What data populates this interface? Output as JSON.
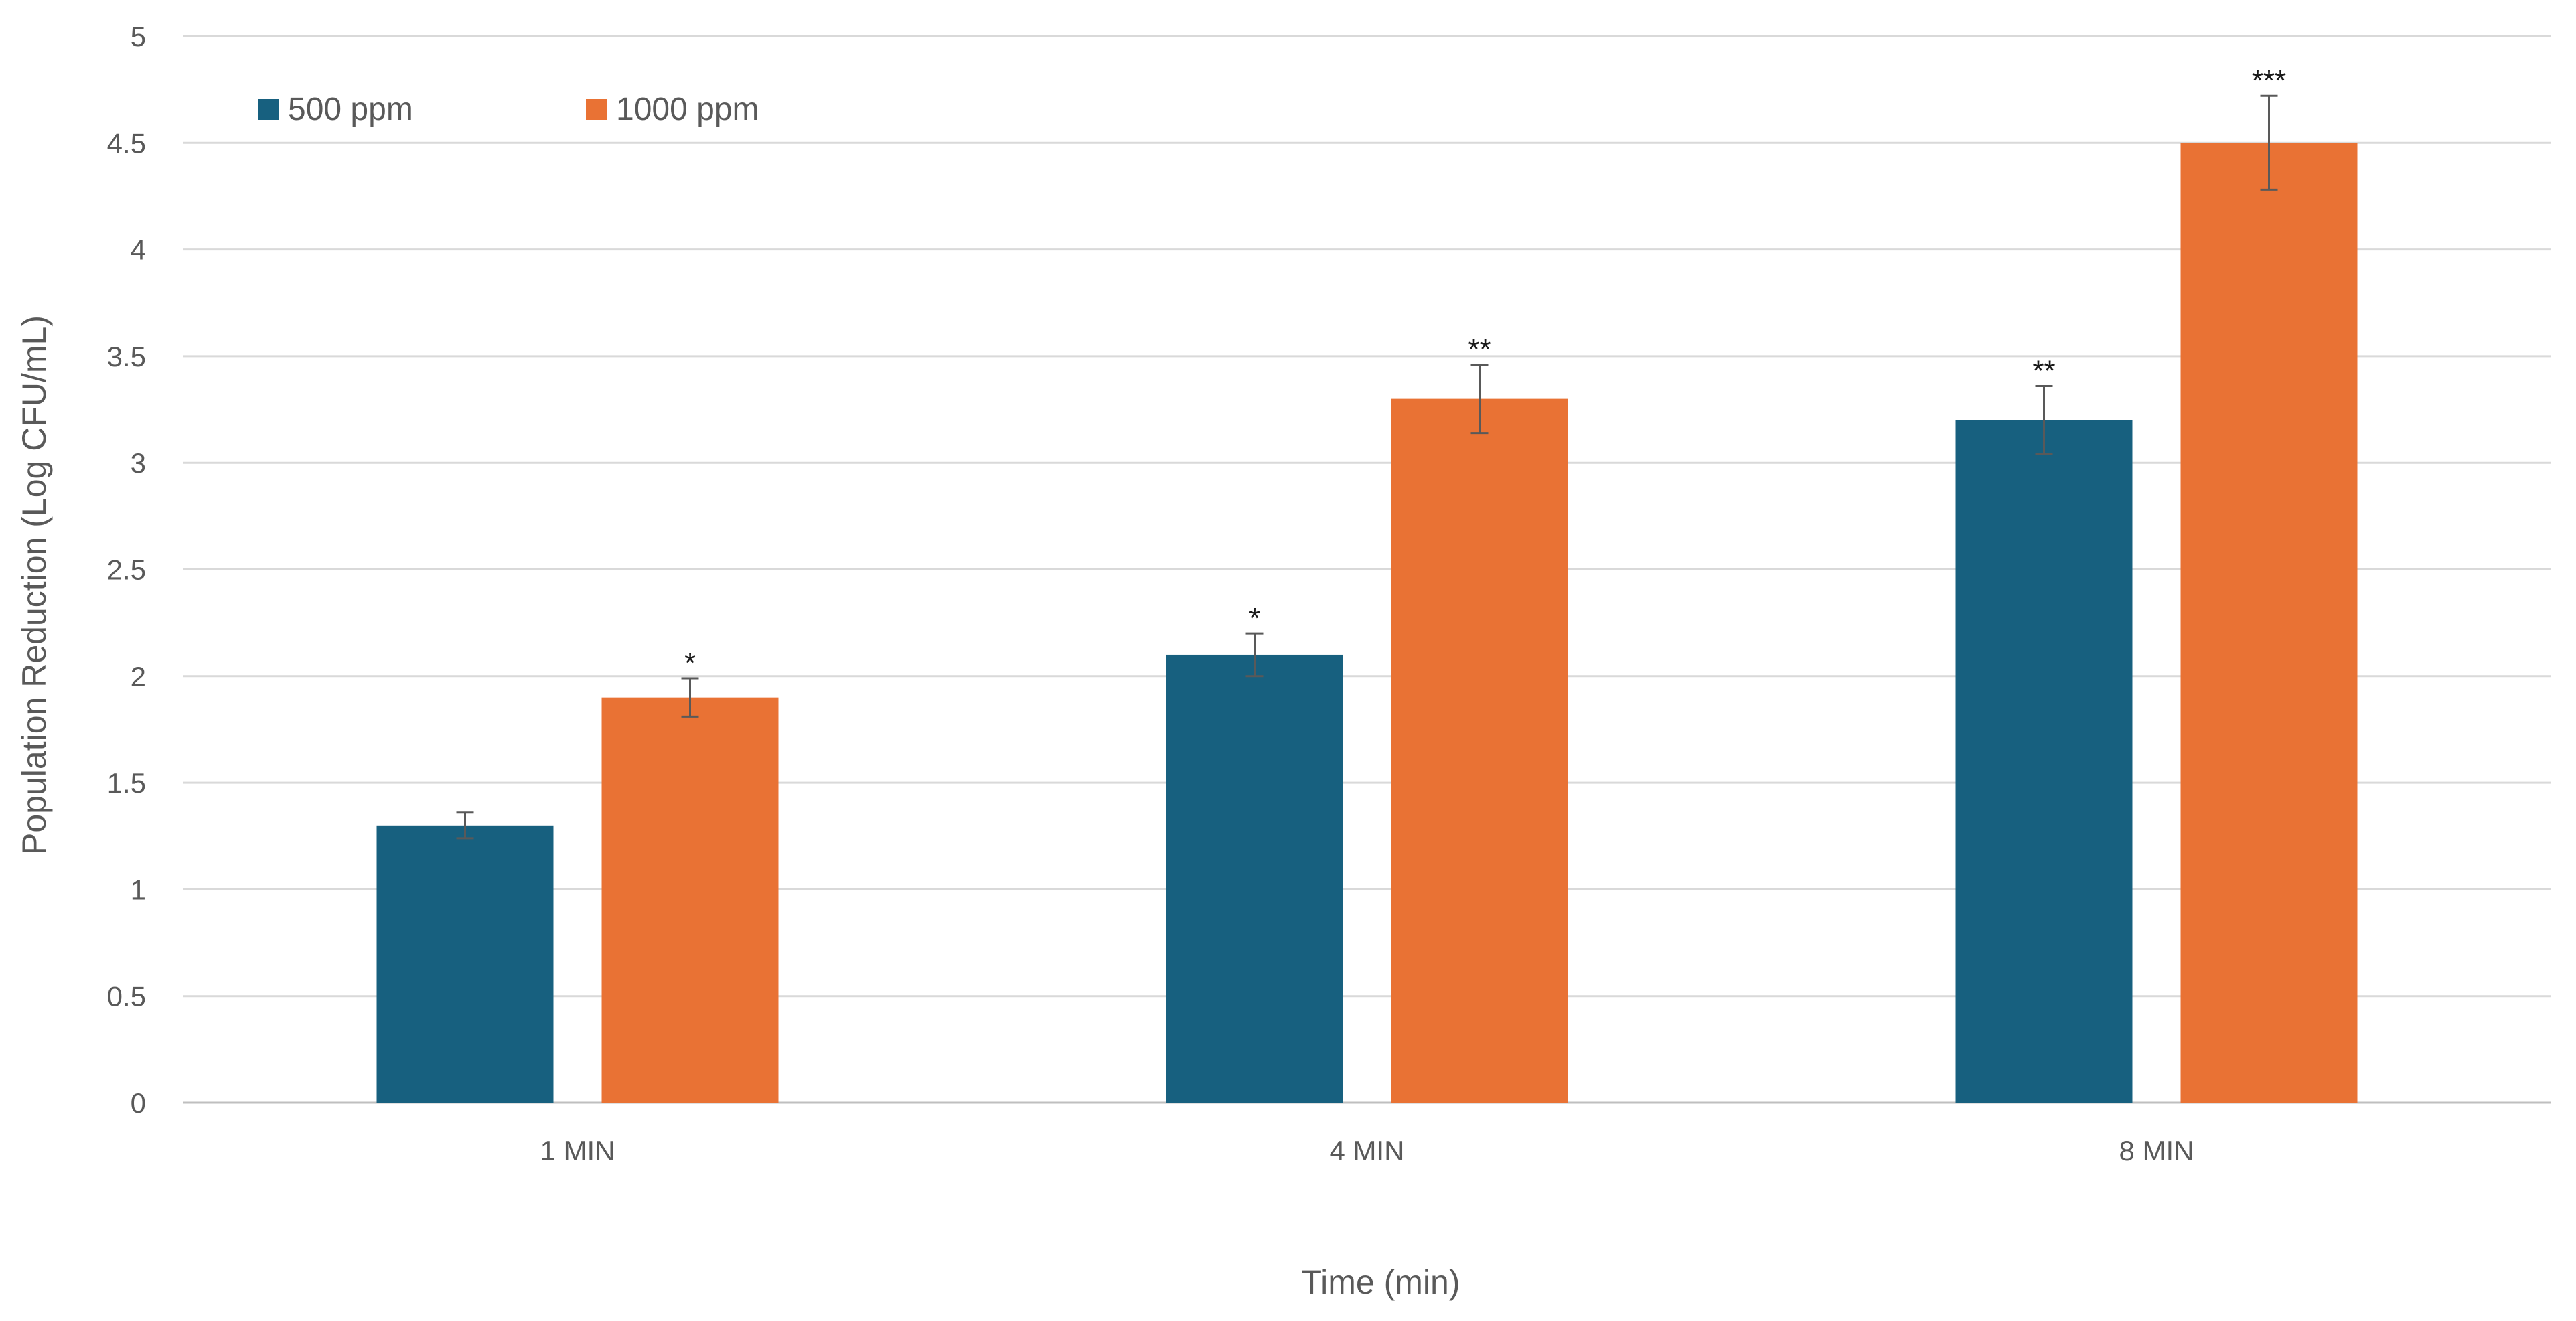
{
  "chart_data": {
    "type": "bar",
    "title": "",
    "xlabel": "Time (min)",
    "ylabel": "Population Reduction (Log CFU/mL)",
    "categories": [
      "1 MIN",
      "4 MIN",
      "8 MIN"
    ],
    "ylim": [
      0,
      5
    ],
    "yticks": [
      0,
      0.5,
      1,
      1.5,
      2,
      2.5,
      3,
      3.5,
      4,
      4.5,
      5
    ],
    "grid": true,
    "legend_position": "top-left",
    "series": [
      {
        "name": "500 ppm",
        "color": "#17607f",
        "values": [
          1.3,
          2.1,
          3.2
        ],
        "errors": [
          0.06,
          0.1,
          0.16
        ],
        "significance": [
          "",
          "*",
          "**"
        ]
      },
      {
        "name": "1000 ppm",
        "color": "#e97234",
        "values": [
          1.9,
          3.3,
          4.5
        ],
        "errors": [
          0.09,
          0.16,
          0.22
        ],
        "significance": [
          "*",
          "**",
          "***"
        ]
      }
    ]
  }
}
